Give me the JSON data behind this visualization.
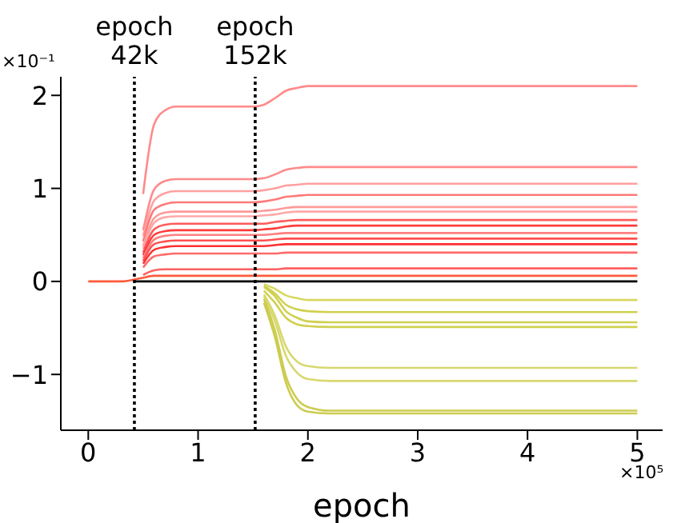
{
  "chart_data": {
    "type": "line",
    "xlabel": "epoch",
    "x": [
      0,
      0.3,
      0.42,
      0.5,
      0.6,
      0.7,
      0.8,
      1.5,
      1.6,
      1.7,
      1.8,
      1.9,
      2.0,
      2.2,
      5.0
    ],
    "xlim": [
      -0.25,
      5.23
    ],
    "ylim": [
      -1.6,
      2.2
    ],
    "xticks": [
      0,
      1,
      2,
      3,
      4,
      5
    ],
    "yticks": [
      -1,
      0,
      1,
      2
    ],
    "annotations": [
      "×10⁻¹",
      "×10⁵"
    ],
    "ref_lines": [
      {
        "axis": "x",
        "value": 0.42,
        "label": "epoch 42k",
        "color": "#000000",
        "line_style": "dotted"
      },
      {
        "axis": "x",
        "value": 1.52,
        "label": "epoch 152k",
        "color": "#000000",
        "line_style": "dotted"
      }
    ],
    "series": [
      {
        "color": "#000000",
        "values": [
          null,
          null,
          0,
          0,
          0,
          0,
          0,
          0,
          0,
          0,
          0,
          0,
          0,
          0,
          0
        ]
      },
      {
        "color": "#ff8a8a",
        "values": [
          null,
          null,
          null,
          0.94,
          1.69,
          1.84,
          1.88,
          1.88,
          1.9,
          1.97,
          2.05,
          2.08,
          2.1,
          2.1,
          2.1
        ]
      },
      {
        "color": "#ff8a8a",
        "values": [
          null,
          null,
          null,
          0.55,
          0.99,
          1.08,
          1.1,
          1.1,
          1.11,
          1.15,
          1.2,
          1.22,
          1.23,
          1.23,
          1.23
        ]
      },
      {
        "color": "#ffa0a0",
        "values": [
          null,
          null,
          null,
          0.49,
          0.87,
          0.95,
          0.97,
          0.97,
          0.98,
          1.0,
          1.03,
          1.04,
          1.05,
          1.05,
          1.05
        ]
      },
      {
        "color": "#ff7a7a",
        "values": [
          null,
          null,
          null,
          0.43,
          0.77,
          0.83,
          0.85,
          0.85,
          0.86,
          0.88,
          0.91,
          0.92,
          0.93,
          0.93,
          0.93
        ]
      },
      {
        "color": "#ff9a9a",
        "values": [
          null,
          null,
          null,
          0.38,
          0.68,
          0.74,
          0.75,
          0.75,
          0.76,
          0.77,
          0.79,
          0.8,
          0.8,
          0.8,
          0.8
        ]
      },
      {
        "color": "#ffa8a8",
        "values": [
          null,
          null,
          null,
          0.35,
          0.63,
          0.69,
          0.7,
          0.7,
          0.71,
          0.72,
          0.74,
          0.75,
          0.75,
          0.75,
          0.75
        ]
      },
      {
        "color": "#ff5a5a",
        "values": [
          null,
          null,
          null,
          0.31,
          0.56,
          0.61,
          0.62,
          0.62,
          0.62,
          0.64,
          0.65,
          0.66,
          0.66,
          0.66,
          0.66
        ]
      },
      {
        "color": "#ff3c3c",
        "values": [
          null,
          null,
          null,
          0.28,
          0.5,
          0.54,
          0.55,
          0.55,
          0.56,
          0.57,
          0.59,
          0.6,
          0.6,
          0.6,
          0.6
        ]
      },
      {
        "color": "#ff8080",
        "values": [
          null,
          null,
          null,
          0.25,
          0.45,
          0.49,
          0.5,
          0.5,
          0.5,
          0.51,
          0.52,
          0.52,
          0.52,
          0.52,
          0.52
        ]
      },
      {
        "color": "#ff5050",
        "values": [
          null,
          null,
          null,
          0.22,
          0.4,
          0.43,
          0.44,
          0.44,
          0.44,
          0.45,
          0.46,
          0.46,
          0.46,
          0.46,
          0.46
        ]
      },
      {
        "color": "#ff3030",
        "values": [
          null,
          null,
          null,
          0.19,
          0.34,
          0.37,
          0.38,
          0.38,
          0.38,
          0.39,
          0.4,
          0.4,
          0.4,
          0.4,
          0.4
        ]
      },
      {
        "color": "#ff6a6a",
        "values": [
          null,
          null,
          null,
          0.15,
          0.27,
          0.29,
          0.3,
          0.3,
          0.3,
          0.3,
          0.31,
          0.31,
          0.31,
          0.31,
          0.31
        ]
      },
      {
        "color": "#ff6060",
        "values": [
          null,
          null,
          null,
          0.07,
          0.12,
          0.13,
          0.13,
          0.13,
          0.13,
          0.13,
          0.14,
          0.14,
          0.14,
          0.14,
          0.14
        ]
      },
      {
        "color": "#ff5a3a",
        "values": [
          0,
          0,
          0.02,
          0.04,
          0.06,
          0.06,
          0.06,
          0.06,
          0.06,
          0.06,
          0.06,
          0.06,
          0.06,
          0.06,
          0.06
        ]
      },
      {
        "color": "#d8d860",
        "values": [
          null,
          null,
          null,
          null,
          null,
          null,
          null,
          null,
          -0.03,
          -0.08,
          -0.15,
          -0.18,
          -0.2,
          -0.2,
          -0.2
        ]
      },
      {
        "color": "#d0d050",
        "values": [
          null,
          null,
          null,
          null,
          null,
          null,
          null,
          null,
          -0.05,
          -0.13,
          -0.25,
          -0.3,
          -0.32,
          -0.33,
          -0.33
        ]
      },
      {
        "color": "#d0d050",
        "values": [
          null,
          null,
          null,
          null,
          null,
          null,
          null,
          null,
          -0.06,
          -0.16,
          -0.32,
          -0.39,
          -0.43,
          -0.44,
          -0.44
        ]
      },
      {
        "color": "#d0d050",
        "values": [
          null,
          null,
          null,
          null,
          null,
          null,
          null,
          null,
          -0.1,
          -0.23,
          -0.39,
          -0.46,
          -0.48,
          -0.49,
          -0.49
        ]
      },
      {
        "color": "#d8d870",
        "values": [
          null,
          null,
          null,
          null,
          null,
          null,
          null,
          null,
          -0.14,
          -0.37,
          -0.7,
          -0.86,
          -0.91,
          -0.93,
          -0.93
        ]
      },
      {
        "color": "#d8d870",
        "values": [
          null,
          null,
          null,
          null,
          null,
          null,
          null,
          null,
          -0.16,
          -0.43,
          -0.8,
          -0.98,
          -1.05,
          -1.07,
          -1.07
        ]
      },
      {
        "color": "#cccc50",
        "values": [
          null,
          null,
          null,
          null,
          null,
          null,
          null,
          null,
          -0.19,
          -0.53,
          -1.02,
          -1.26,
          -1.35,
          -1.39,
          -1.39
        ]
      },
      {
        "color": "#cccc50",
        "values": [
          null,
          null,
          null,
          null,
          null,
          null,
          null,
          null,
          -0.23,
          -0.6,
          -1.09,
          -1.33,
          -1.4,
          -1.42,
          -1.42
        ]
      }
    ]
  }
}
